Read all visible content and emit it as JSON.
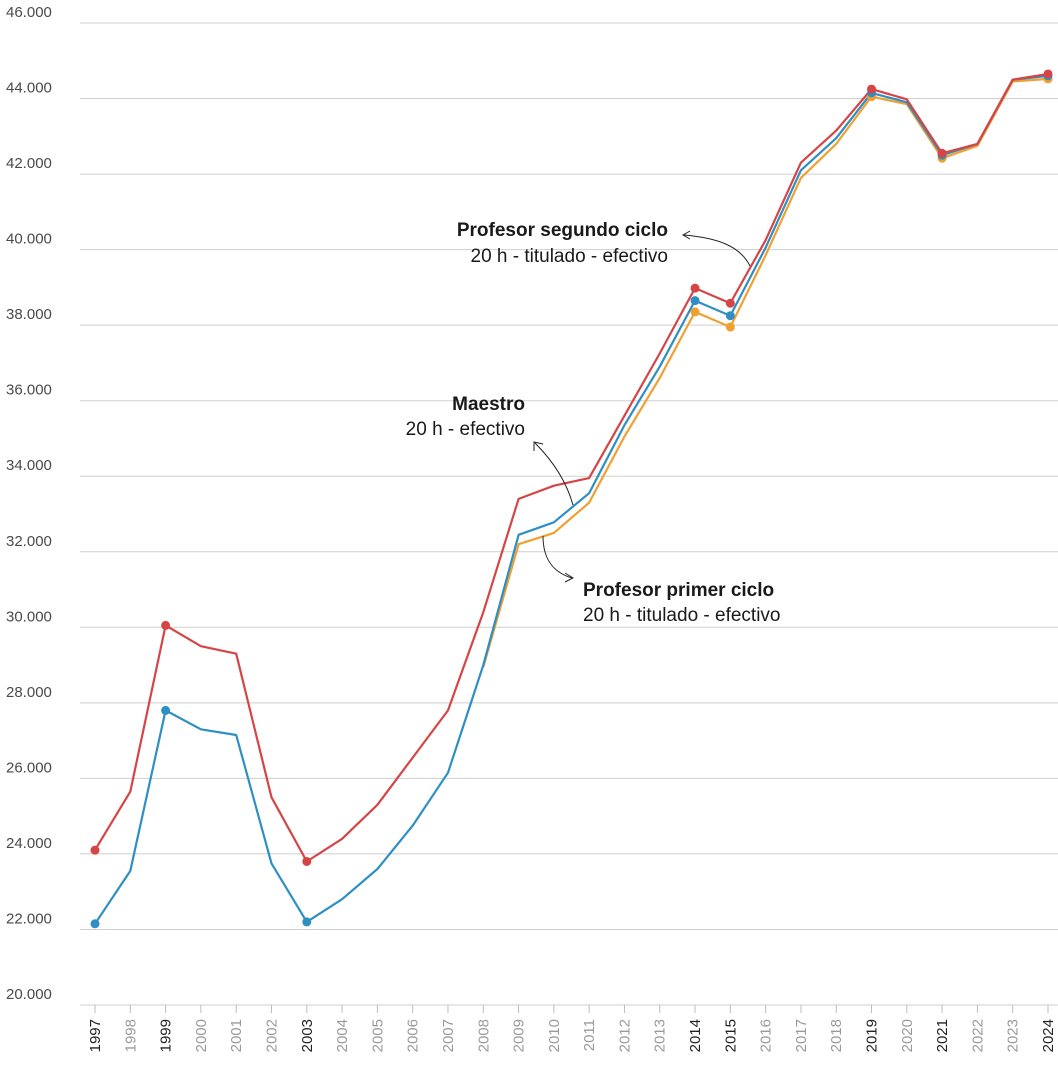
{
  "chart_data": {
    "type": "line",
    "x": [
      "1997",
      "1998",
      "1999",
      "2000",
      "2001",
      "2002",
      "2003",
      "2004",
      "2005",
      "2006",
      "2007",
      "2008",
      "2009",
      "2010",
      "2011",
      "2012",
      "2013",
      "2014",
      "2015",
      "2016",
      "2017",
      "2018",
      "2019",
      "2020",
      "2021",
      "2022",
      "2023",
      "2024"
    ],
    "highlighted_years": [
      "1997",
      "1999",
      "2003",
      "2014",
      "2015",
      "2019",
      "2021",
      "2024"
    ],
    "ylim": [
      20000,
      46000
    ],
    "yticks": [
      "20.000",
      "22.000",
      "24.000",
      "26.000",
      "28.000",
      "30.000",
      "32.000",
      "34.000",
      "36.000",
      "38.000",
      "40.000",
      "42.000",
      "44.000",
      "46.000"
    ],
    "ytick_values": [
      20000,
      22000,
      24000,
      26000,
      28000,
      30000,
      32000,
      34000,
      36000,
      38000,
      40000,
      42000,
      44000,
      46000
    ],
    "grid": true,
    "series": [
      {
        "key": "segundo",
        "color": "#d64545",
        "values": [
          24100,
          25650,
          30050,
          29500,
          29300,
          25500,
          23800,
          24400,
          25300,
          26550,
          27800,
          30400,
          33400,
          33750,
          33950,
          35600,
          37250,
          38980,
          38580,
          40250,
          42300,
          43150,
          44250,
          43980,
          42550,
          42800,
          44500,
          44650
        ]
      },
      {
        "key": "maestro",
        "color": "#2e8fc4",
        "values": [
          22150,
          23550,
          27800,
          27300,
          27150,
          23750,
          22200,
          22800,
          23600,
          24750,
          26150,
          29000,
          32450,
          32780,
          33550,
          35350,
          36900,
          38650,
          38250,
          40050,
          42100,
          42950,
          44150,
          43900,
          42500,
          42800,
          44500,
          44600
        ]
      },
      {
        "key": "primer",
        "color": "#f0a030",
        "values": [
          null,
          null,
          null,
          null,
          null,
          null,
          null,
          null,
          null,
          null,
          null,
          28950,
          32200,
          32500,
          33300,
          35050,
          36600,
          38350,
          37950,
          39850,
          41900,
          42800,
          44050,
          43850,
          42420,
          42750,
          44450,
          44520
        ]
      }
    ],
    "annotations": [
      {
        "title": "Profesor segundo ciclo",
        "subtitle": "20 h - titulado - efectivo"
      },
      {
        "title": "Maestro",
        "subtitle": "20 h - efectivo"
      },
      {
        "title": "Profesor primer ciclo",
        "subtitle": "20 h - titulado - efectivo"
      }
    ],
    "colors": {
      "tick_highlight": "#222222",
      "tick_muted": "#9a9a9a"
    }
  }
}
